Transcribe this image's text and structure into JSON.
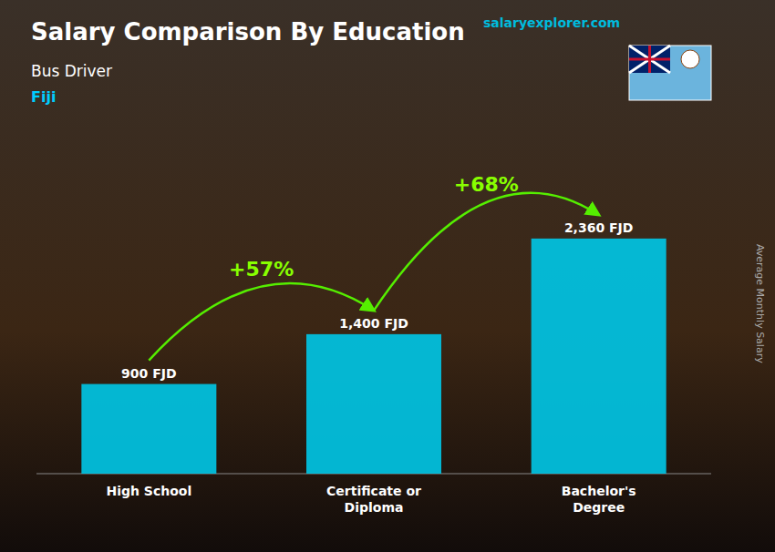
{
  "chart_data": {
    "type": "bar",
    "title": "Salary Comparison By Education",
    "subtitle": "Bus Driver",
    "annotations": [
      "Fiji",
      "+57%",
      "+68%",
      "salaryexplorer.com",
      "Average Monthly Salary"
    ],
    "categories": [
      "High School",
      "Certificate or\nDiploma",
      "Bachelor's\nDegree"
    ],
    "values": [
      900,
      1400,
      2360
    ],
    "value_labels": [
      "900 FJD",
      "1,400 FJD",
      "2,360 FJD"
    ],
    "data_labels": true,
    "color": "#00C8E8",
    "ylim": [
      0,
      3200
    ],
    "tick_labels": false,
    "grid": false
  }
}
